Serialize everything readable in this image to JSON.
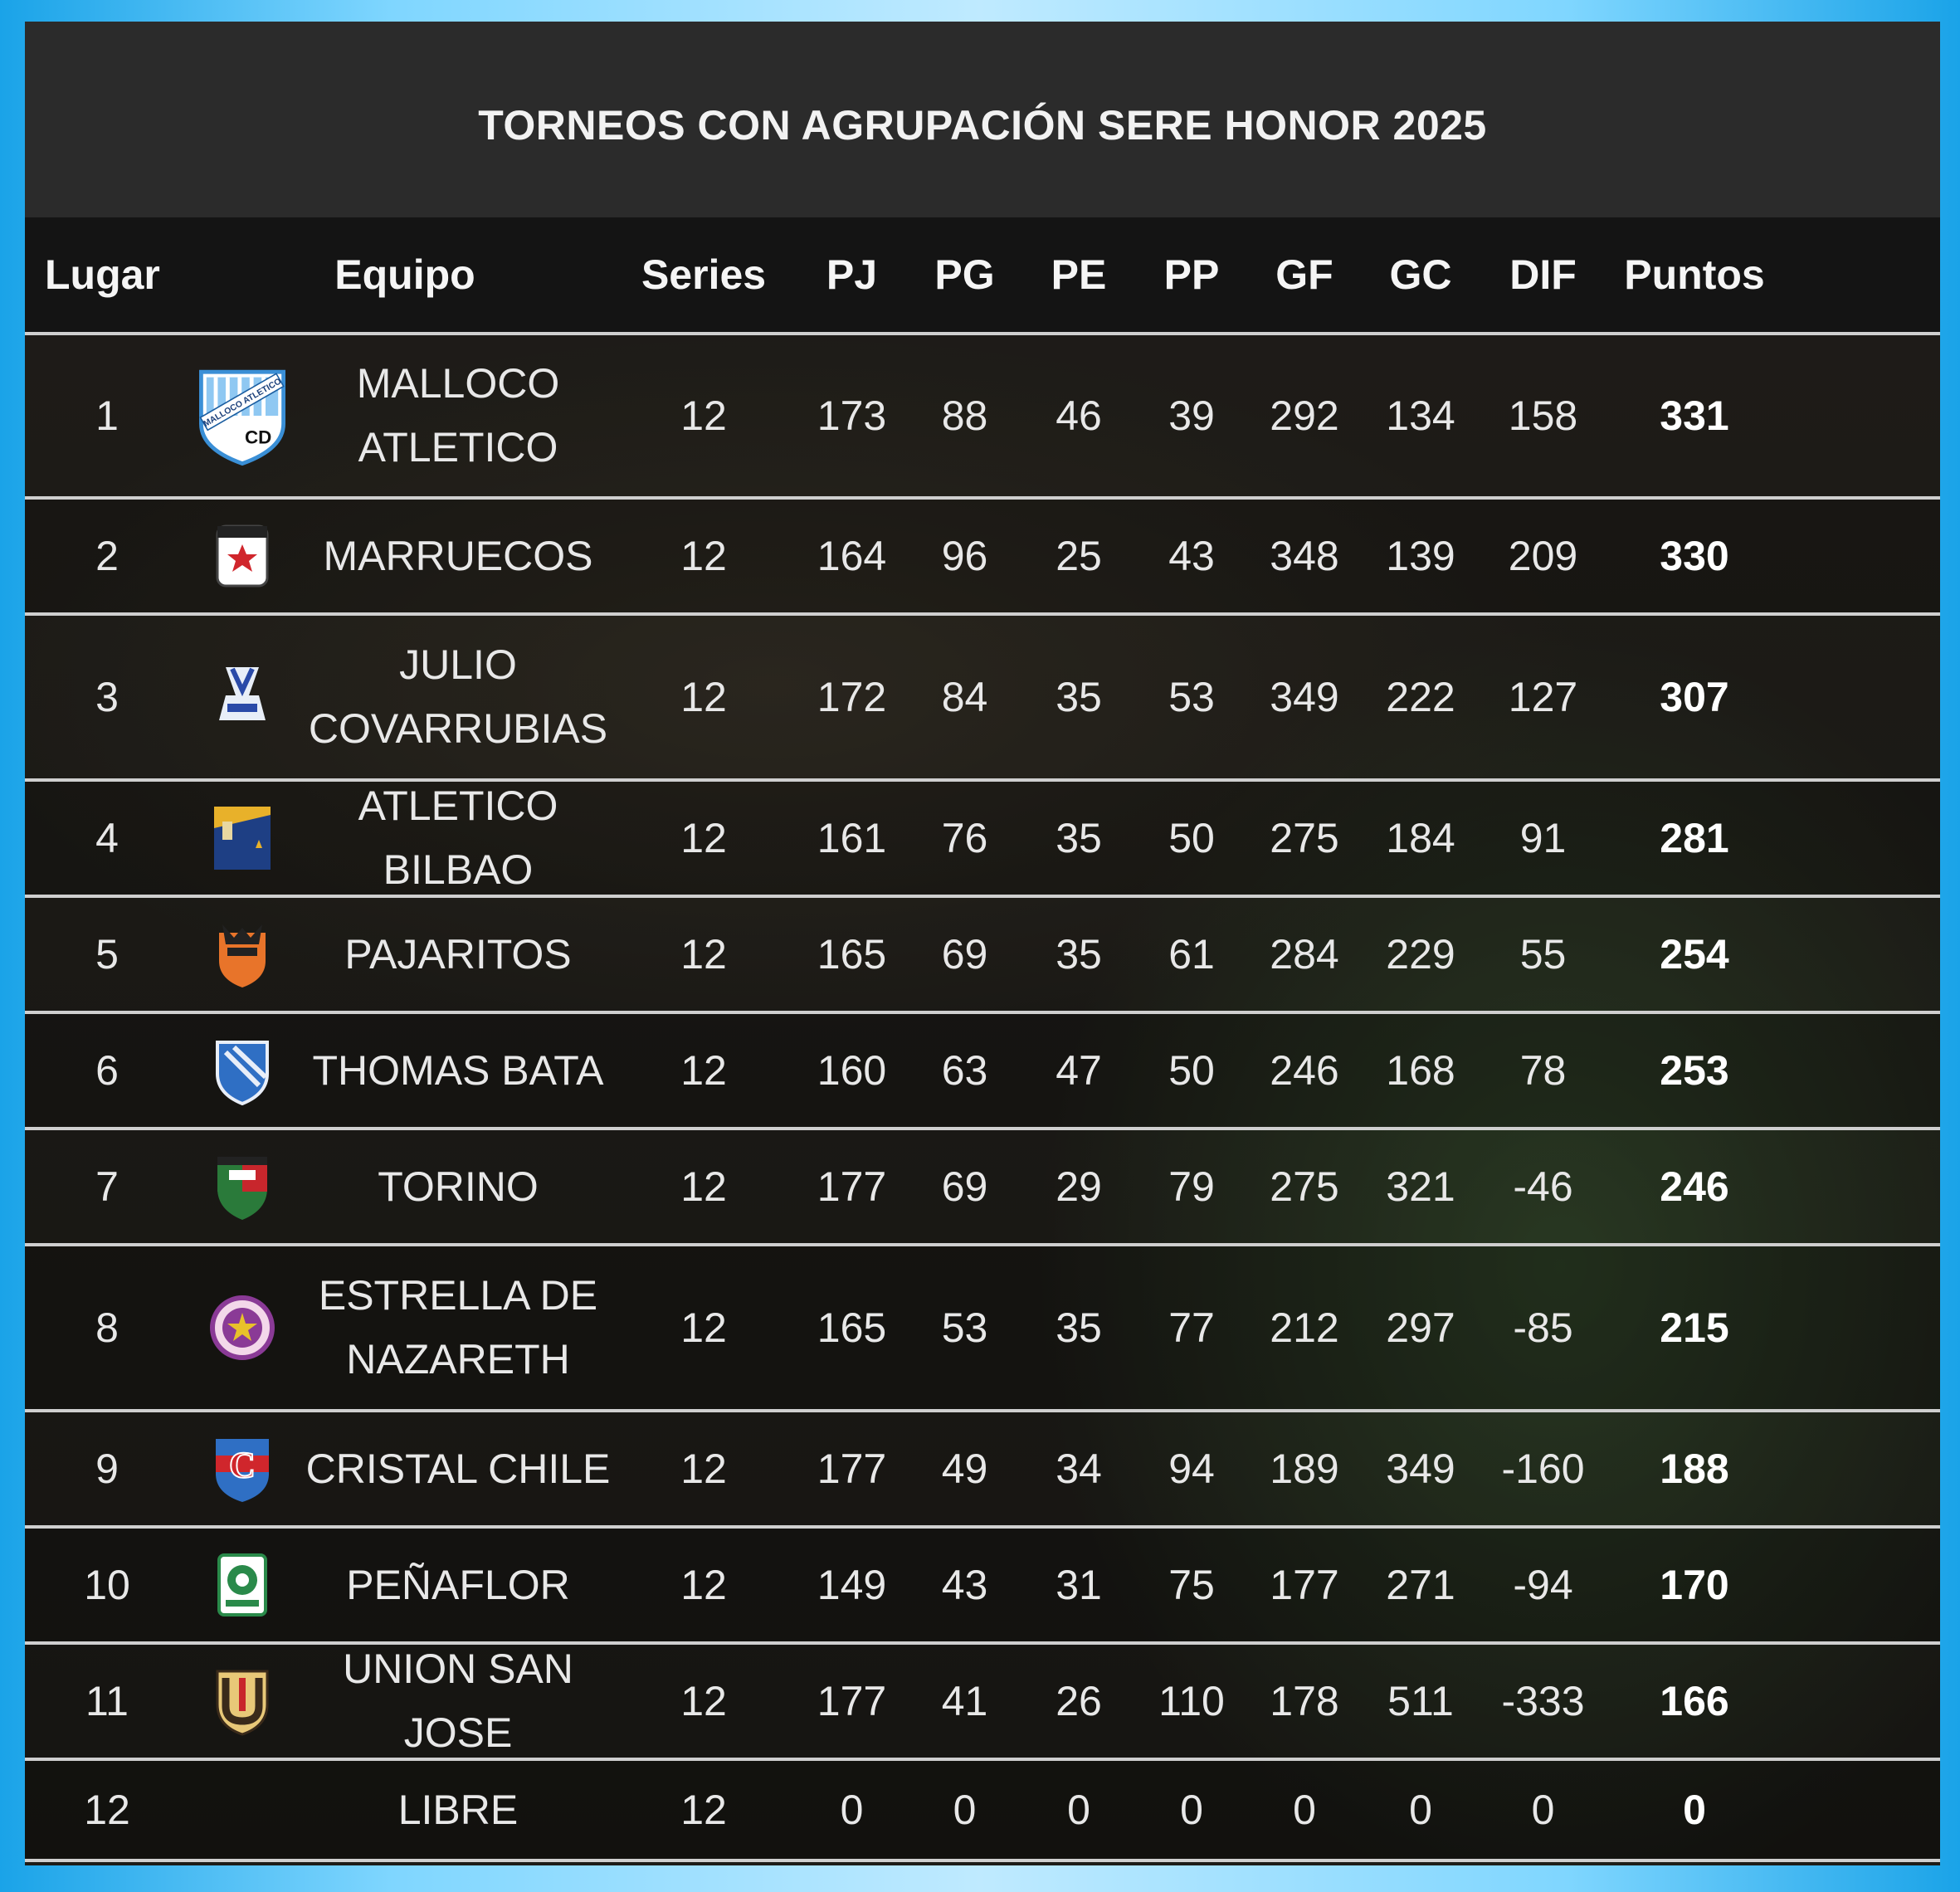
{
  "title": "TORNEOS CON AGRUPACIÓN SERE HONOR 2025",
  "columns": {
    "lugar": "Lugar",
    "equipo": "Equipo",
    "series": "Series",
    "pj": "PJ",
    "pg": "PG",
    "pe": "PE",
    "pp": "PP",
    "gf": "GF",
    "gc": "GC",
    "dif": "DIF",
    "puntos": "Puntos"
  },
  "rows": [
    {
      "lugar": "1",
      "equipo": "MALLOCO ATLETICO",
      "logo": "malloco-crest-icon",
      "logo_text_top": "MALLOCO ATLETICO",
      "logo_text_bottom": "CD",
      "series": "12",
      "pj": "173",
      "pg": "88",
      "pe": "46",
      "pp": "39",
      "gf": "292",
      "gc": "134",
      "dif": "158",
      "puntos": "331"
    },
    {
      "lugar": "2",
      "equipo": "MARRUECOS",
      "logo": "marruecos-crest-icon",
      "series": "12",
      "pj": "164",
      "pg": "96",
      "pe": "25",
      "pp": "43",
      "gf": "348",
      "gc": "139",
      "dif": "209",
      "puntos": "330"
    },
    {
      "lugar": "3",
      "equipo": "JULIO COVARRUBIAS",
      "logo": "julio-covarrubias-crest-icon",
      "series": "12",
      "pj": "172",
      "pg": "84",
      "pe": "35",
      "pp": "53",
      "gf": "349",
      "gc": "222",
      "dif": "127",
      "puntos": "307"
    },
    {
      "lugar": "4",
      "equipo": "ATLETICO BILBAO",
      "logo": "atletico-bilbao-crest-icon",
      "series": "12",
      "pj": "161",
      "pg": "76",
      "pe": "35",
      "pp": "50",
      "gf": "275",
      "gc": "184",
      "dif": "91",
      "puntos": "281"
    },
    {
      "lugar": "5",
      "equipo": "PAJARITOS",
      "logo": "pajaritos-crest-icon",
      "series": "12",
      "pj": "165",
      "pg": "69",
      "pe": "35",
      "pp": "61",
      "gf": "284",
      "gc": "229",
      "dif": "55",
      "puntos": "254"
    },
    {
      "lugar": "6",
      "equipo": "THOMAS BATA",
      "logo": "thomas-bata-crest-icon",
      "series": "12",
      "pj": "160",
      "pg": "63",
      "pe": "47",
      "pp": "50",
      "gf": "246",
      "gc": "168",
      "dif": "78",
      "puntos": "253"
    },
    {
      "lugar": "7",
      "equipo": "TORINO",
      "logo": "torino-crest-icon",
      "series": "12",
      "pj": "177",
      "pg": "69",
      "pe": "29",
      "pp": "79",
      "gf": "275",
      "gc": "321",
      "dif": "-46",
      "puntos": "246"
    },
    {
      "lugar": "8",
      "equipo": "ESTRELLA DE NAZARETH",
      "logo": "estrella-nazareth-crest-icon",
      "series": "12",
      "pj": "165",
      "pg": "53",
      "pe": "35",
      "pp": "77",
      "gf": "212",
      "gc": "297",
      "dif": "-85",
      "puntos": "215"
    },
    {
      "lugar": "9",
      "equipo": "CRISTAL CHILE",
      "logo": "cristal-chile-crest-icon",
      "series": "12",
      "pj": "177",
      "pg": "49",
      "pe": "34",
      "pp": "94",
      "gf": "189",
      "gc": "349",
      "dif": "-160",
      "puntos": "188"
    },
    {
      "lugar": "10",
      "equipo": "PEÑAFLOR",
      "logo": "penaflor-crest-icon",
      "series": "12",
      "pj": "149",
      "pg": "43",
      "pe": "31",
      "pp": "75",
      "gf": "177",
      "gc": "271",
      "dif": "-94",
      "puntos": "170"
    },
    {
      "lugar": "11",
      "equipo": "UNION SAN JOSE",
      "logo": "union-san-jose-crest-icon",
      "series": "12",
      "pj": "177",
      "pg": "41",
      "pe": "26",
      "pp": "110",
      "gf": "178",
      "gc": "511",
      "dif": "-333",
      "puntos": "166"
    },
    {
      "lugar": "12",
      "equipo": "LIBRE",
      "logo": "",
      "series": "12",
      "pj": "0",
      "pg": "0",
      "pe": "0",
      "pp": "0",
      "gf": "0",
      "gc": "0",
      "dif": "0",
      "puntos": "0"
    }
  ],
  "colors": {
    "frame_blue": "#1aa3e8",
    "title_bg": "#2b2b2b",
    "header_bg": "#141414",
    "row_divider": "#cfcfcf",
    "text": "#e8e8e8"
  }
}
